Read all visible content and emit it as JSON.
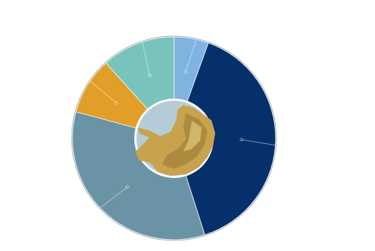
{
  "chart_data": {
    "type": "donut",
    "values": [
      5.5,
      39.6,
      34.1,
      9.1,
      11.7
    ],
    "colors": [
      "#7fb3e0",
      "#05306b",
      "#6b93a6",
      "#e19f2a",
      "#78c3bb"
    ]
  }
}
